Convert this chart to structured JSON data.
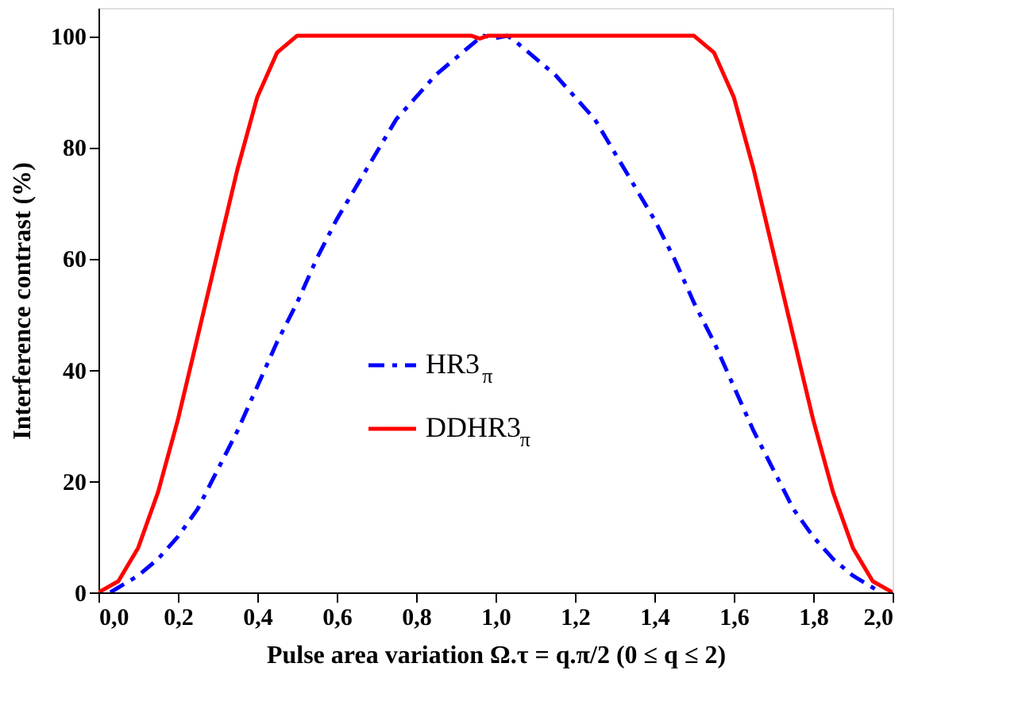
{
  "chart_data": {
    "type": "line",
    "xlabel": "Pulse area variation Ω.τ = q.π/2 (0 ≤ q ≤ 2)",
    "ylabel": "Interference contrast  (%)",
    "xlim": [
      0,
      2
    ],
    "ylim": [
      0,
      105
    ],
    "xticks": [
      {
        "value": 0,
        "label": "0,0"
      },
      {
        "value": 0.2,
        "label": "0,2"
      },
      {
        "value": 0.4,
        "label": "0,4"
      },
      {
        "value": 0.6,
        "label": "0,6"
      },
      {
        "value": 0.8,
        "label": "0,8"
      },
      {
        "value": 1,
        "label": "1,0"
      },
      {
        "value": 1.2,
        "label": "1,2"
      },
      {
        "value": 1.4,
        "label": "1,4"
      },
      {
        "value": 1.6,
        "label": "1,6"
      },
      {
        "value": 1.8,
        "label": "1,8"
      },
      {
        "value": 2,
        "label": "2,0"
      }
    ],
    "yticks": [
      0,
      20,
      40,
      60,
      80,
      100
    ],
    "grid": false,
    "legend": "bottom",
    "marker": "none",
    "series": [
      {
        "name": "HR3$_{π}$",
        "color": "#0000ff",
        "line_style": "dashed",
        "x": [
          0.03,
          0.1,
          0.15,
          0.2,
          0.25,
          0.3,
          0.35,
          0.4,
          0.45,
          0.5,
          0.55,
          0.6,
          0.65,
          0.7,
          0.75,
          0.8,
          0.85,
          0.9,
          0.95,
          0.97,
          1.0,
          1.03,
          1.05,
          1.1,
          1.15,
          1.2,
          1.25,
          1.3,
          1.35,
          1.4,
          1.45,
          1.5,
          1.55,
          1.6,
          1.65,
          1.7,
          1.75,
          1.8,
          1.85,
          1.9,
          1.97
        ],
        "values": [
          0,
          3,
          6,
          10,
          15,
          22,
          29,
          37,
          45,
          52,
          60,
          67,
          73,
          79,
          85,
          89,
          93,
          96,
          99,
          100,
          99.6,
          100,
          99,
          96,
          93,
          89,
          85,
          79,
          73,
          67,
          60,
          52,
          45,
          37,
          29,
          22,
          15,
          10,
          6,
          3,
          0
        ]
      },
      {
        "name": "DDHR3$_{π}$",
        "color": "#ff0000",
        "line_style": "solid",
        "x": [
          0,
          0.05,
          0.1,
          0.15,
          0.2,
          0.25,
          0.3,
          0.35,
          0.4,
          0.45,
          0.5,
          0.94,
          0.96,
          0.98,
          1.5,
          1.55,
          1.6,
          1.65,
          1.7,
          1.75,
          1.8,
          1.85,
          1.9,
          1.95,
          2.0
        ],
        "values": [
          0,
          2,
          8,
          18,
          31,
          46,
          61,
          76,
          89,
          97,
          100,
          100,
          99.5,
          100,
          100,
          97,
          89,
          76,
          61,
          46,
          31,
          18,
          8,
          2,
          0
        ]
      }
    ]
  }
}
